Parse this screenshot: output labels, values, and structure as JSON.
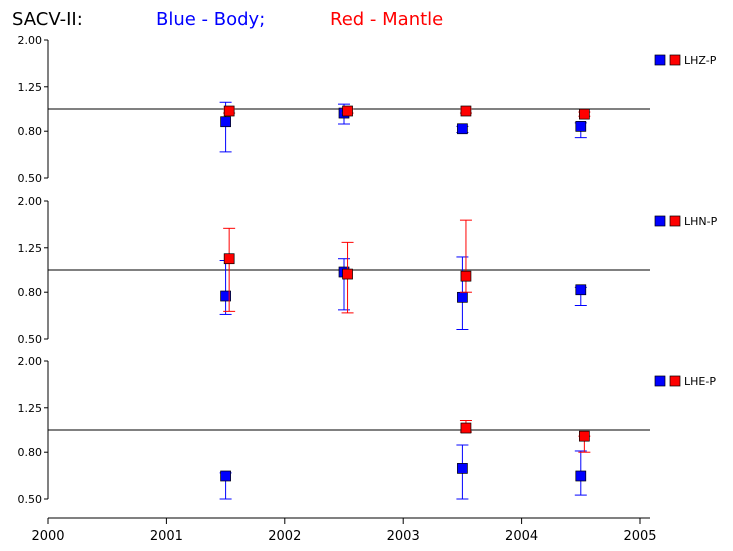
{
  "title": {
    "prefix": "SACV-II:",
    "blue_part": "Blue - Body;",
    "red_part": "Red - Mantle"
  },
  "colors": {
    "body": "#0000ff",
    "mantle": "#ff0000",
    "axis": "#000000"
  },
  "chart_data": {
    "type": "scatter",
    "y_scale": "log",
    "ylim": [
      0.5,
      2.0
    ],
    "yticks": [
      "2.00",
      "1.25",
      "0.80",
      "0.50"
    ],
    "xlim": [
      2000,
      2005
    ],
    "xticks": [
      "2000",
      "2001",
      "2002",
      "2003",
      "2004",
      "2005"
    ],
    "reference_line": 1.0,
    "panels": [
      {
        "label": "LHZ-P",
        "series": [
          {
            "name": "Body",
            "points": [
              {
                "x": 2001.5,
                "y": 0.88,
                "lo": 0.65,
                "hi": 1.07
              },
              {
                "x": 2002.5,
                "y": 0.96,
                "lo": 0.86,
                "hi": 1.05
              },
              {
                "x": 2003.5,
                "y": 0.82,
                "lo": 0.79,
                "hi": 0.84
              },
              {
                "x": 2004.5,
                "y": 0.84,
                "lo": 0.75,
                "hi": 0.87
              }
            ]
          },
          {
            "name": "Mantle",
            "points": [
              {
                "x": 2001.53,
                "y": 0.98,
                "lo": 0.96,
                "hi": 1.0
              },
              {
                "x": 2002.53,
                "y": 0.98,
                "lo": 0.96,
                "hi": 1.0
              },
              {
                "x": 2003.53,
                "y": 0.98,
                "lo": 0.96,
                "hi": 1.0
              },
              {
                "x": 2004.53,
                "y": 0.95,
                "lo": 0.93,
                "hi": 0.97
              }
            ]
          }
        ]
      },
      {
        "label": "LHN-P",
        "series": [
          {
            "name": "Body",
            "points": [
              {
                "x": 2001.5,
                "y": 0.77,
                "lo": 0.64,
                "hi": 1.1
              },
              {
                "x": 2002.5,
                "y": 0.98,
                "lo": 0.67,
                "hi": 1.12
              },
              {
                "x": 2003.5,
                "y": 0.76,
                "lo": 0.55,
                "hi": 1.14
              },
              {
                "x": 2004.5,
                "y": 0.82,
                "lo": 0.7,
                "hi": 0.84
              }
            ]
          },
          {
            "name": "Mantle",
            "points": [
              {
                "x": 2001.53,
                "y": 1.12,
                "lo": 0.66,
                "hi": 1.52
              },
              {
                "x": 2002.53,
                "y": 0.96,
                "lo": 0.65,
                "hi": 1.32
              },
              {
                "x": 2003.53,
                "y": 0.94,
                "lo": 0.8,
                "hi": 1.65
              }
            ]
          }
        ]
      },
      {
        "label": "LHE-P",
        "series": [
          {
            "name": "Body",
            "points": [
              {
                "x": 2001.5,
                "y": 0.63,
                "lo": 0.5,
                "hi": 0.65
              },
              {
                "x": 2003.5,
                "y": 0.68,
                "lo": 0.5,
                "hi": 0.86
              },
              {
                "x": 2004.5,
                "y": 0.63,
                "lo": 0.52,
                "hi": 0.81
              }
            ]
          },
          {
            "name": "Mantle",
            "points": [
              {
                "x": 2003.53,
                "y": 1.02,
                "lo": 0.98,
                "hi": 1.1
              },
              {
                "x": 2004.53,
                "y": 0.94,
                "lo": 0.8,
                "hi": 0.94
              }
            ]
          }
        ]
      }
    ]
  }
}
